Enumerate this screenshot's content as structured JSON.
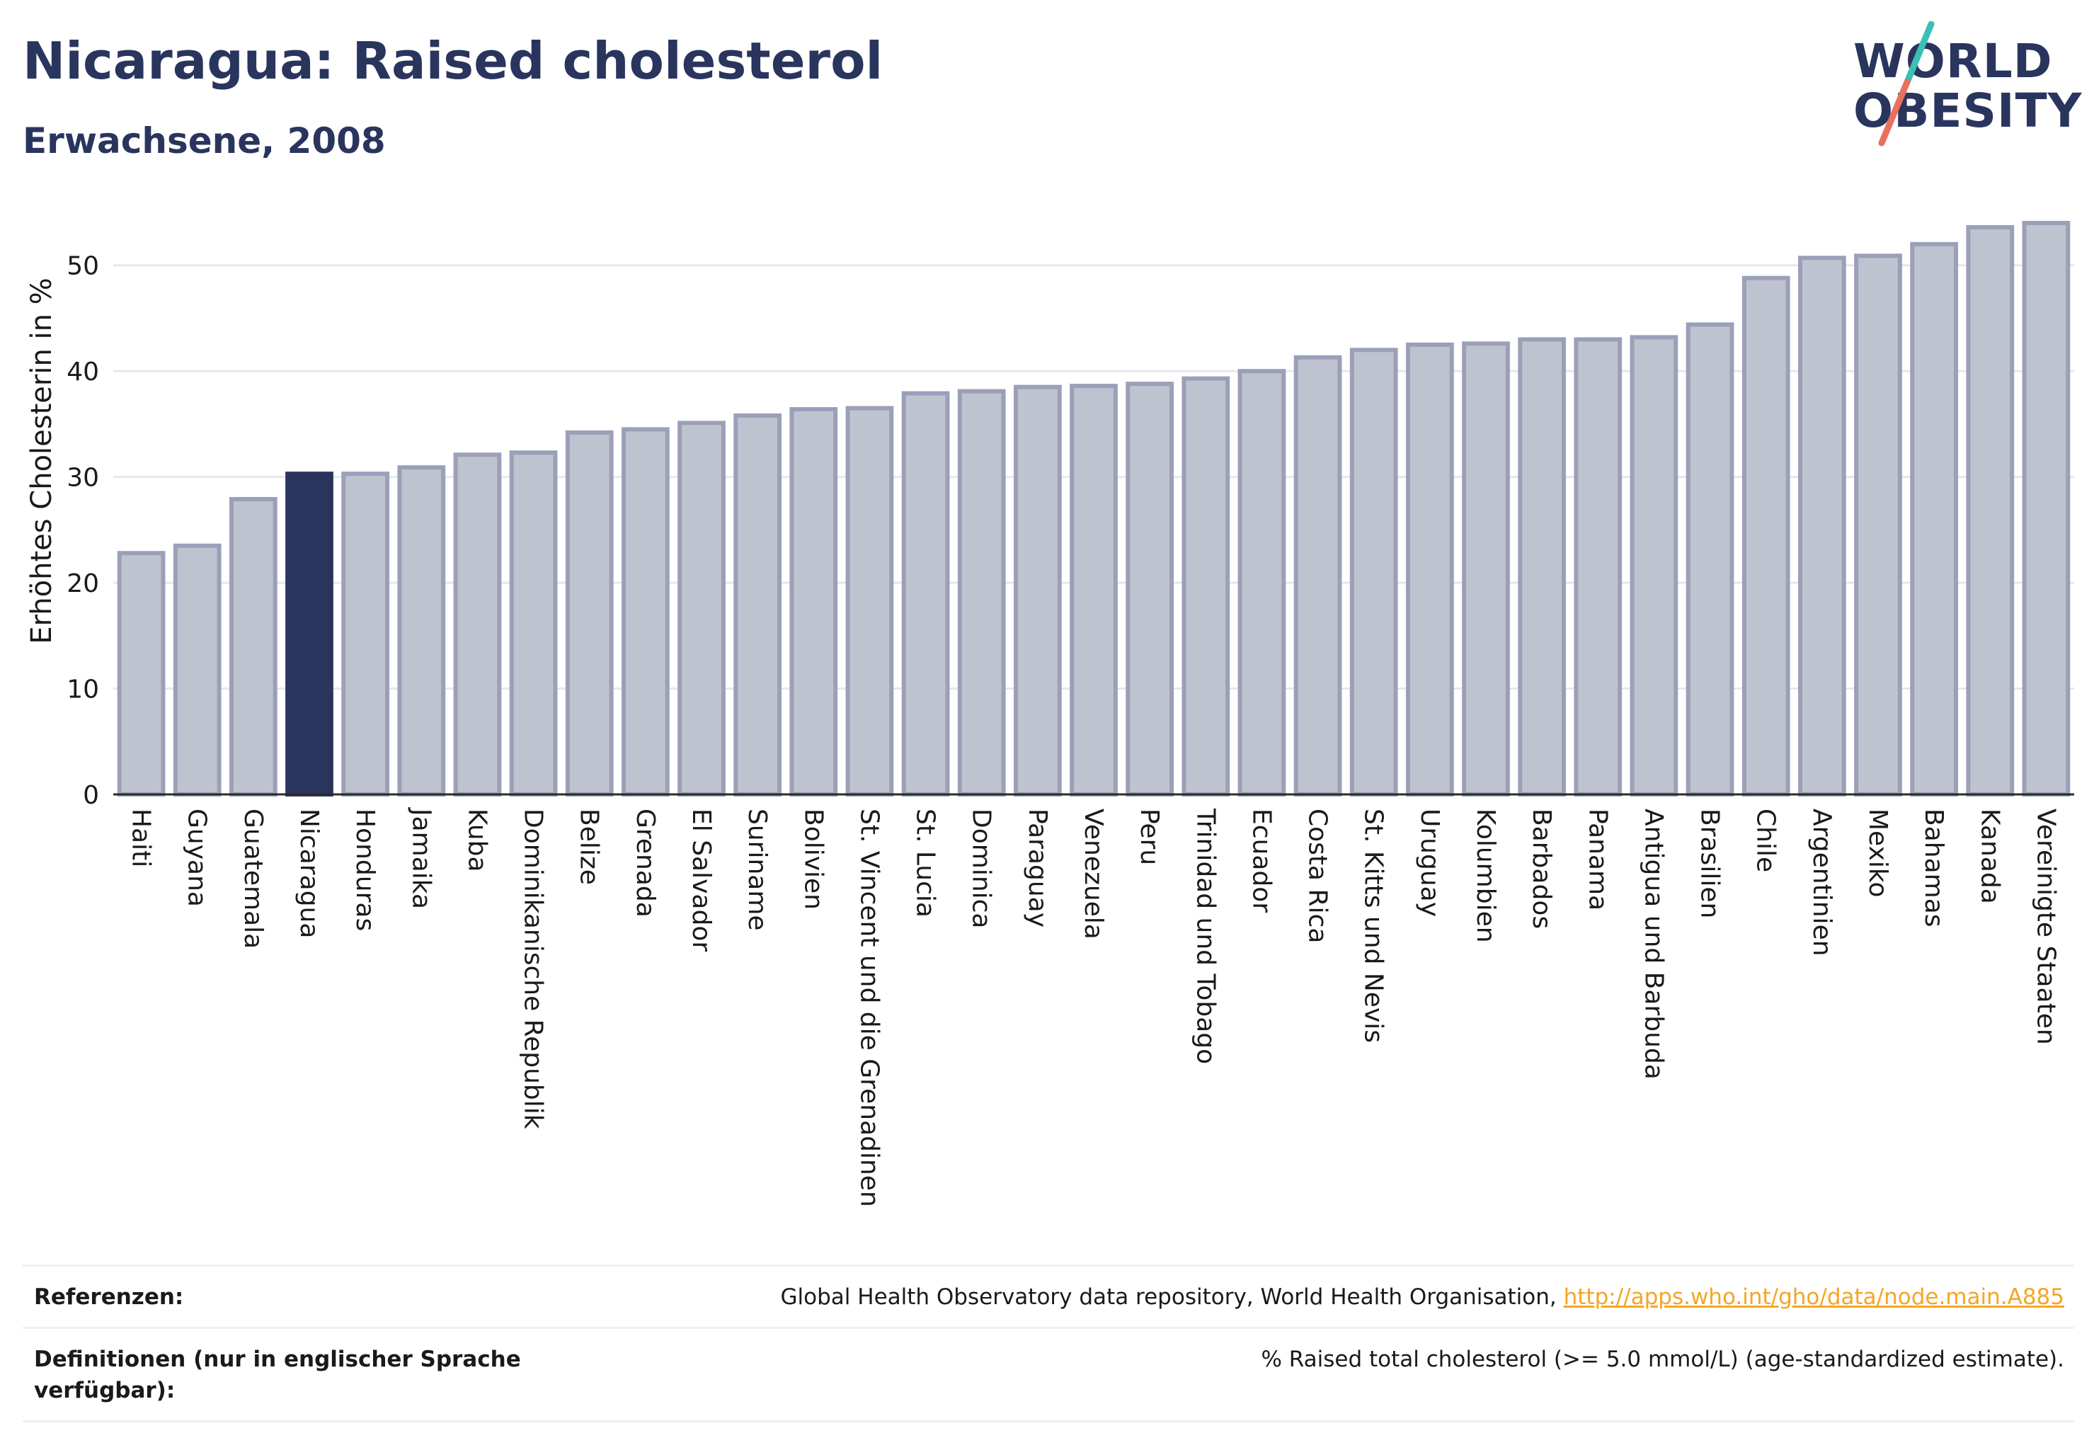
{
  "header": {
    "title": "Nicaragua: Raised cholesterol",
    "subtitle": "Erwachsene, 2008",
    "logo_line1": "WORLD",
    "logo_line2": "OBESITY"
  },
  "colors": {
    "title": "#2a355e",
    "bar_default": "#bfc3d0",
    "bar_default_stroke": "#9aa0b8",
    "bar_highlight": "#2a355e",
    "logo_slash_teal": "#3bbfb6",
    "logo_slash_coral": "#e8705f",
    "link": "#f5a623"
  },
  "chart_data": {
    "type": "bar",
    "title": "Nicaragua: Raised cholesterol",
    "subtitle": "Erwachsene, 2008",
    "xlabel": "",
    "ylabel": "Erhöhtes Cholesterin in %",
    "ylim": [
      0,
      55
    ],
    "yticks": [
      0,
      10,
      20,
      30,
      40,
      50
    ],
    "grid": true,
    "highlight": "Nicaragua",
    "categories": [
      "Haiti",
      "Guyana",
      "Guatemala",
      "Nicaragua",
      "Honduras",
      "Jamaika",
      "Kuba",
      "Dominikanische Republik",
      "Belize",
      "Grenada",
      "El Salvador",
      "Suriname",
      "Bolivien",
      "St. Vincent und die Grenadinen",
      "St. Lucia",
      "Dominica",
      "Paraguay",
      "Venezuela",
      "Peru",
      "Trinidad und Tobago",
      "Ecuador",
      "Costa Rica",
      "St. Kitts und Nevis",
      "Uruguay",
      "Kolumbien",
      "Barbados",
      "Panama",
      "Antigua und Barbuda",
      "Brasilien",
      "Chile",
      "Argentinien",
      "Mexiko",
      "Bahamas",
      "Kanada",
      "Vereinigte Staaten"
    ],
    "values": [
      22.8,
      23.5,
      27.9,
      30.3,
      30.3,
      30.9,
      32.1,
      32.3,
      34.2,
      34.5,
      35.1,
      35.8,
      36.4,
      36.5,
      37.9,
      38.1,
      38.5,
      38.6,
      38.8,
      39.3,
      40.0,
      41.3,
      42.0,
      42.5,
      42.6,
      43.0,
      43.0,
      43.2,
      44.4,
      48.8,
      50.7,
      50.9,
      52.0,
      53.6,
      54.0
    ]
  },
  "references": {
    "label": "Referenzen:",
    "text": "Global Health Observatory data repository, World Health Organisation, ",
    "link": "http://apps.who.int/gho/data/node.main.A885"
  },
  "definitions": {
    "label": "Definitionen (nur in englischer Sprache verfügbar):",
    "text": "% Raised total cholesterol (>= 5.0 mmol/L) (age-standardized estimate)."
  }
}
